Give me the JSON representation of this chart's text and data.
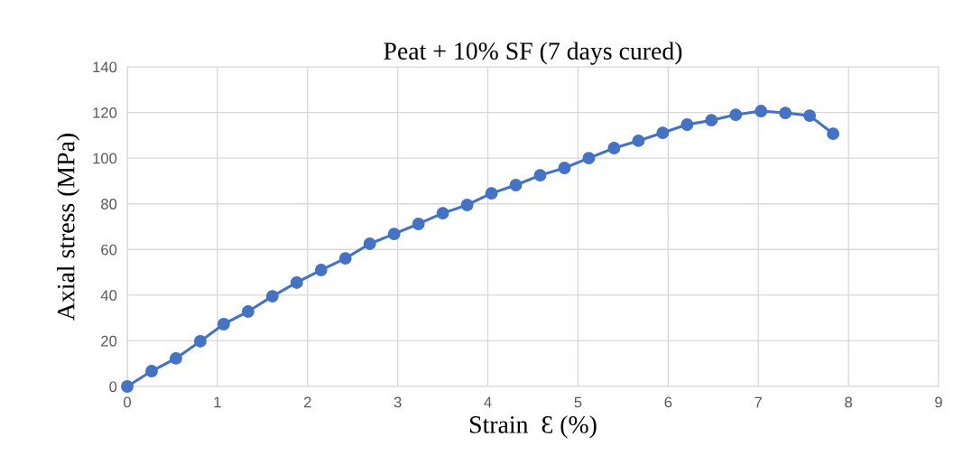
{
  "chart_data": {
    "type": "line",
    "title": "Peat + 10% SF (7 days cured)",
    "xlabel": "Strain  Ɛ (%)",
    "ylabel": "Axial stress (MPa)",
    "x": [
      0,
      0.27,
      0.54,
      0.81,
      1.07,
      1.34,
      1.61,
      1.88,
      2.15,
      2.42,
      2.69,
      2.96,
      3.23,
      3.5,
      3.77,
      4.04,
      4.31,
      4.58,
      4.85,
      5.12,
      5.4,
      5.67,
      5.94,
      6.21,
      6.48,
      6.75,
      7.03,
      7.3,
      7.57,
      7.83
    ],
    "series": [
      {
        "color": "#4472c4",
        "values": [
          0,
          6.7,
          12.3,
          19.8,
          27.3,
          32.8,
          39.5,
          45.5,
          51,
          56.1,
          62.5,
          66.8,
          71.2,
          75.9,
          79.5,
          84.6,
          88.2,
          92.5,
          95.7,
          100,
          104.4,
          107.6,
          111.1,
          114.7,
          116.6,
          119,
          120.6,
          119.8,
          118.6,
          110.7
        ]
      }
    ],
    "xlim": [
      0,
      9
    ],
    "xticks": [
      0,
      1,
      2,
      3,
      4,
      5,
      6,
      7,
      8,
      9
    ],
    "ylim": [
      0,
      140
    ],
    "yticks": [
      0,
      20,
      40,
      60,
      80,
      100,
      120,
      140
    ],
    "grid": true,
    "marker": "circle",
    "line_style": "solid"
  }
}
